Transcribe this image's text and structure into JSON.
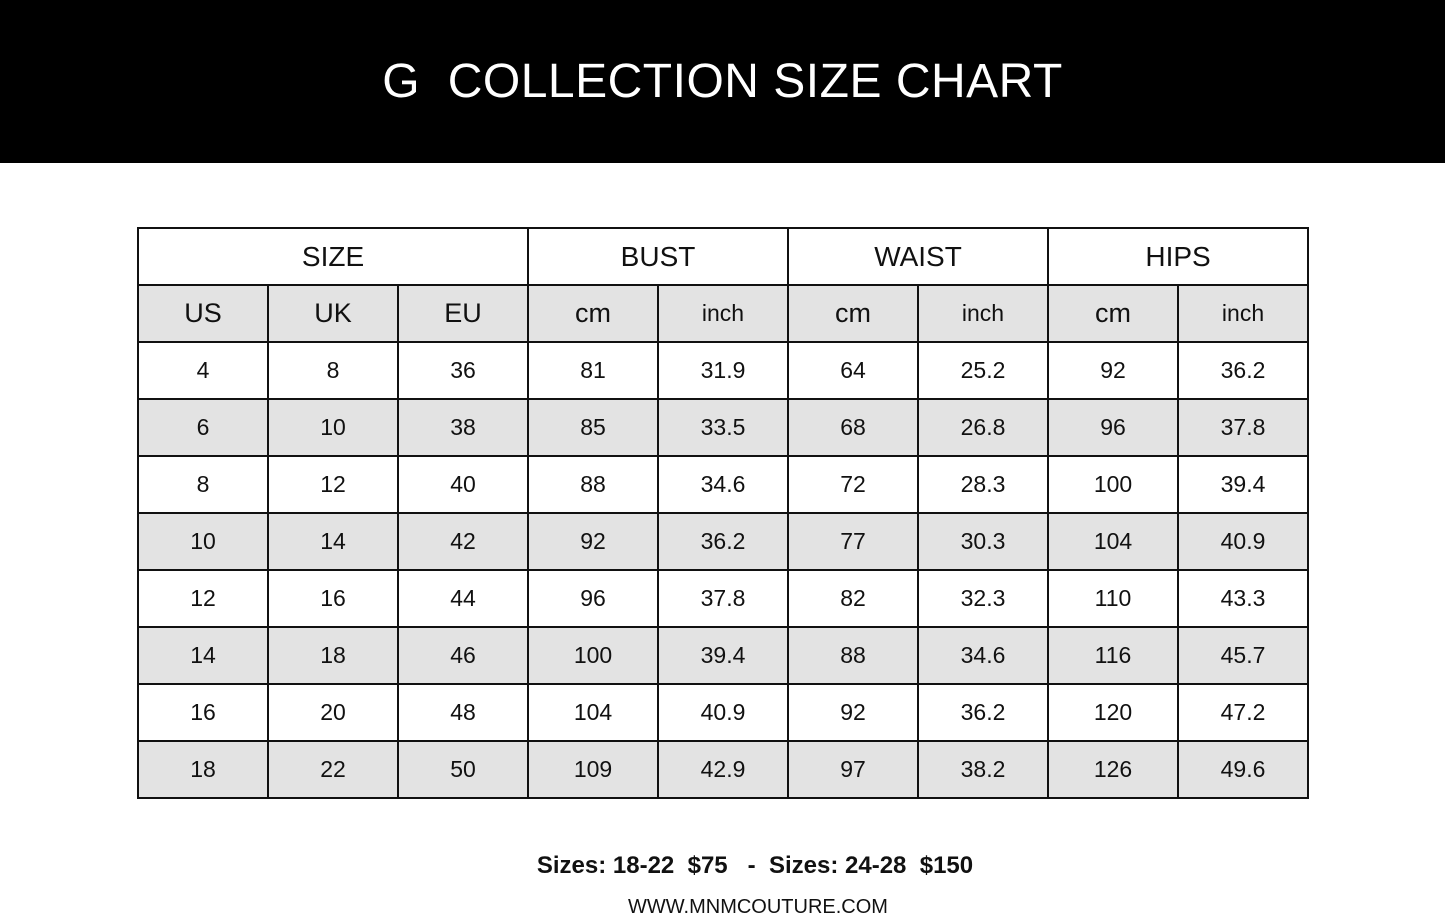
{
  "title": "G  COLLECTION SIZE CHART",
  "table": {
    "groups": [
      "SIZE",
      "BUST",
      "WAIST",
      "HIPS"
    ],
    "subheaders": [
      "US",
      "UK",
      "EU",
      "cm",
      "inch",
      "cm",
      "inch",
      "cm",
      "inch"
    ],
    "rows": [
      [
        "4",
        "8",
        "36",
        "81",
        "31.9",
        "64",
        "25.2",
        "92",
        "36.2"
      ],
      [
        "6",
        "10",
        "38",
        "85",
        "33.5",
        "68",
        "26.8",
        "96",
        "37.8"
      ],
      [
        "8",
        "12",
        "40",
        "88",
        "34.6",
        "72",
        "28.3",
        "100",
        "39.4"
      ],
      [
        "10",
        "14",
        "42",
        "92",
        "36.2",
        "77",
        "30.3",
        "104",
        "40.9"
      ],
      [
        "12",
        "16",
        "44",
        "96",
        "37.8",
        "82",
        "32.3",
        "110",
        "43.3"
      ],
      [
        "14",
        "18",
        "46",
        "100",
        "39.4",
        "88",
        "34.6",
        "116",
        "45.7"
      ],
      [
        "16",
        "20",
        "48",
        "104",
        "40.9",
        "92",
        "36.2",
        "120",
        "47.2"
      ],
      [
        "18",
        "22",
        "50",
        "109",
        "42.9",
        "97",
        "38.2",
        "126",
        "49.6"
      ]
    ]
  },
  "pricing": "Sizes: 18-22  $75   -  Sizes: 24-28  $150",
  "website": "WWW.MNMCOUTURE.COM"
}
